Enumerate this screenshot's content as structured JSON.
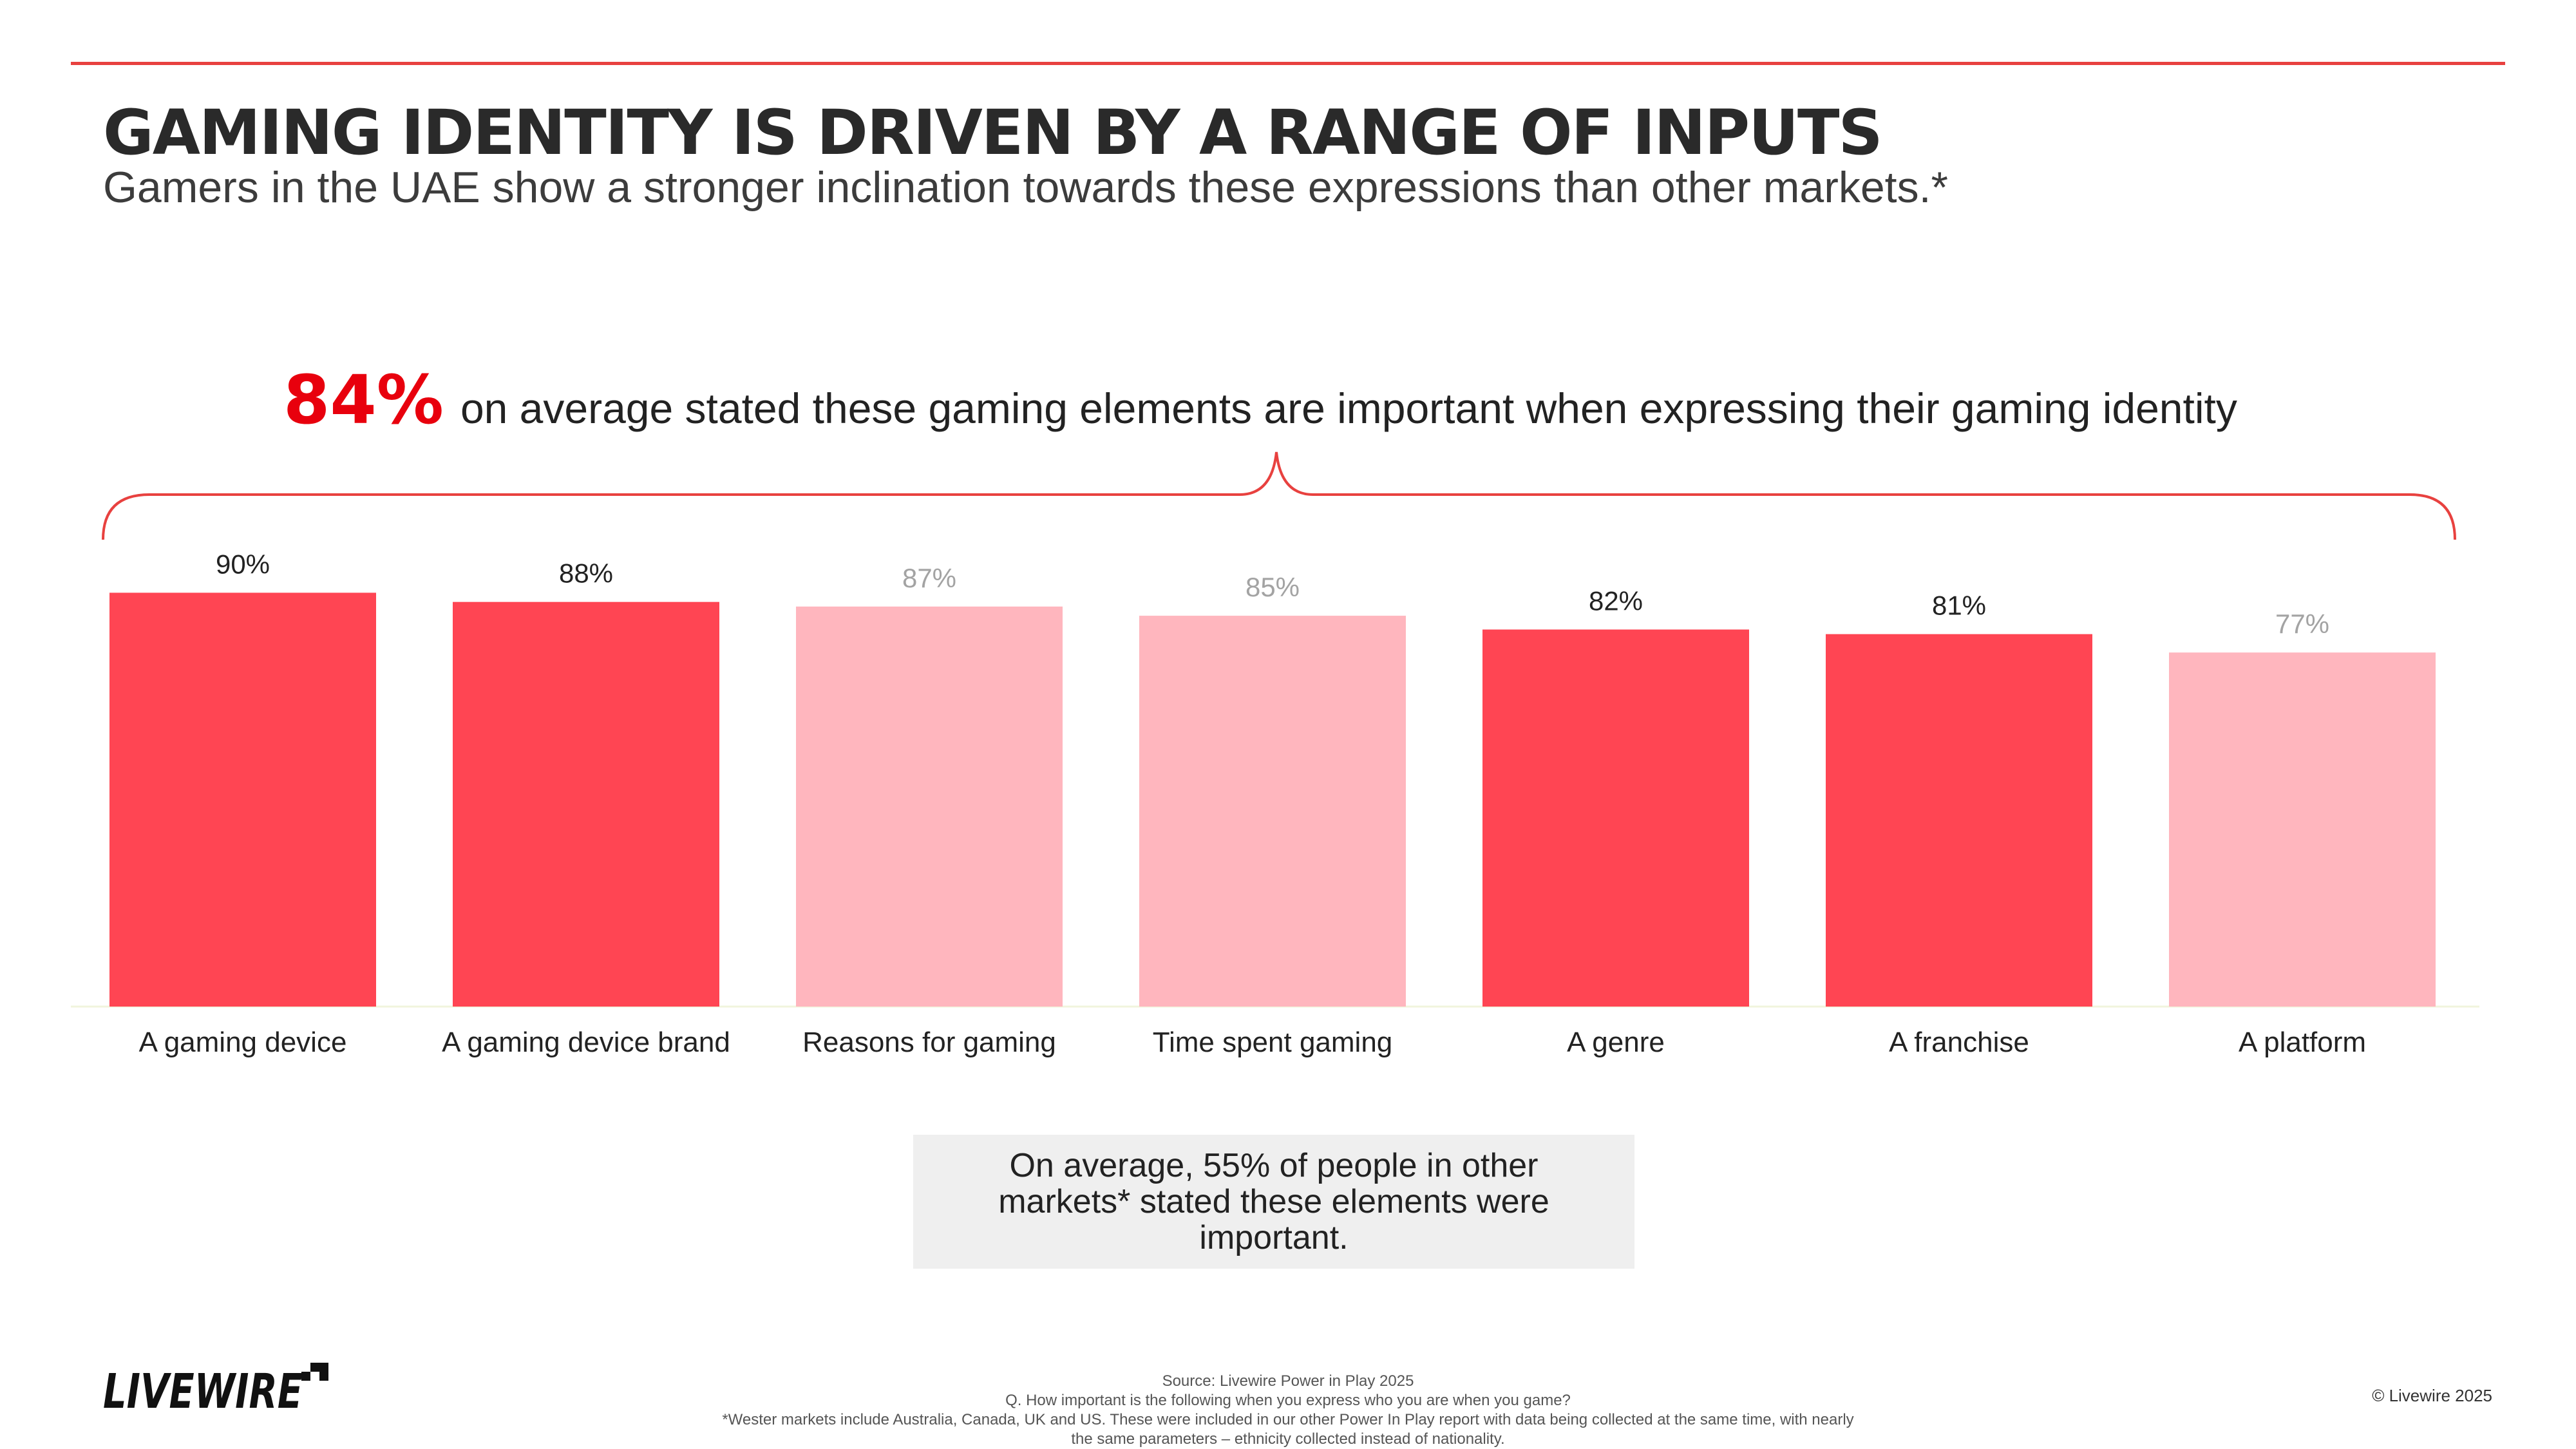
{
  "header": {
    "title": "GAMING IDENTITY IS DRIVEN BY A RANGE OF INPUTS",
    "subtitle": "Gamers in the UAE show a stronger inclination towards these expressions than other markets.*"
  },
  "headline": {
    "stat": "84%",
    "text": "on average stated these gaming elements are important when expressing their gaming identity"
  },
  "colors": {
    "accent": "#e8413f",
    "bar_dark": "#ff4553",
    "bar_light": "#ffb6be",
    "headline_stat": "#e8000d"
  },
  "chart_data": {
    "type": "bar",
    "categories": [
      "A gaming device",
      "A gaming device brand",
      "Reasons for gaming",
      "Time spent gaming",
      "A genre",
      "A franchise",
      "A platform"
    ],
    "values": [
      90,
      88,
      87,
      85,
      82,
      81,
      77
    ],
    "data_labels": [
      "90%",
      "88%",
      "87%",
      "85%",
      "82%",
      "81%",
      "77%"
    ],
    "bar_shades": [
      "dark",
      "dark",
      "light",
      "light",
      "dark",
      "dark",
      "light"
    ],
    "ylim": [
      0,
      90
    ],
    "grid": false,
    "legend": "none"
  },
  "callout": {
    "text": "On average, 55% of people in other markets* stated these elements were important."
  },
  "logo": {
    "text": "LIVEWIRE"
  },
  "footer": {
    "lines": [
      "Source: Livewire Power in Play 2025",
      "Q. How important is the following when you express who you are when you game?",
      "*Wester markets include Australia, Canada, UK and US. These were included in our other Power In Play report with data being collected at the same time, with nearly",
      "the same parameters – ethnicity collected instead of nationality."
    ],
    "copyright": "© Livewire 2025"
  }
}
